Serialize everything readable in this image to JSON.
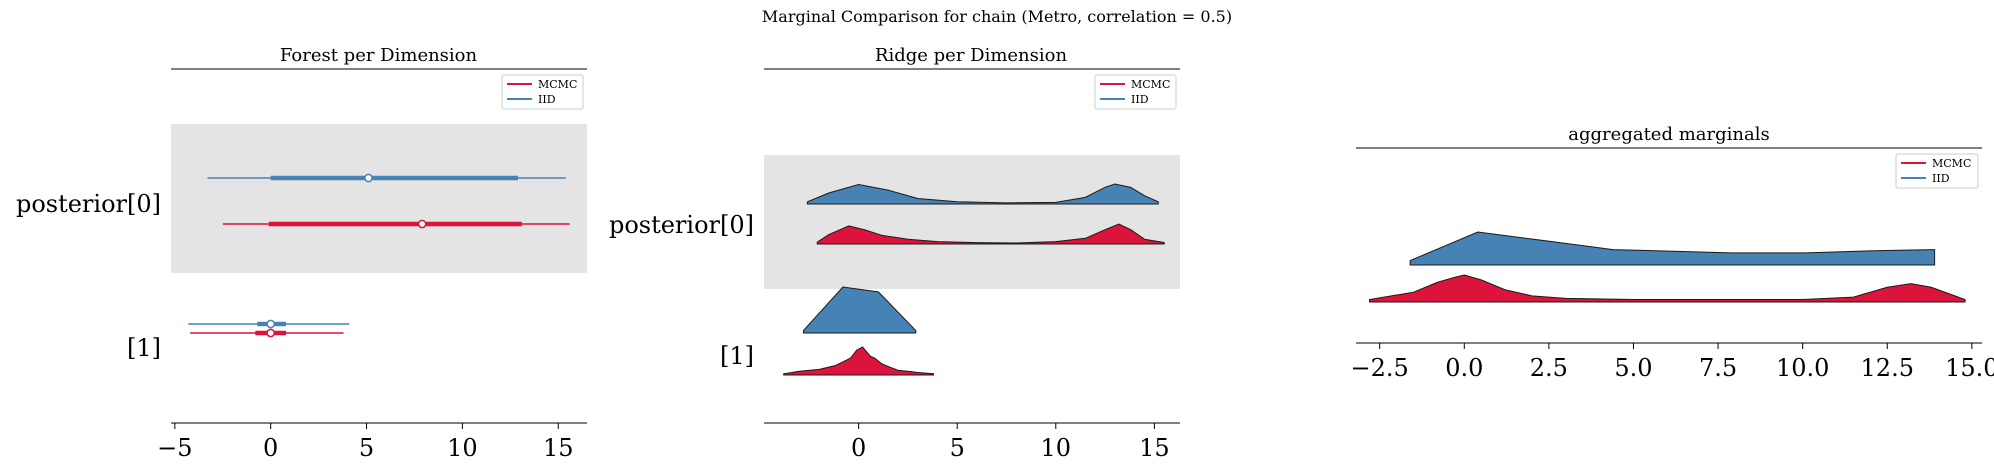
{
  "figure": {
    "suptitle": "Marginal Comparison for chain (Metro, correlation = 0.5)"
  },
  "colors": {
    "mcmc": "#dc143c",
    "iid": "#4682b4",
    "band": "#e4e4e4",
    "axis": "#000000"
  },
  "chart_data": [
    {
      "type": "forest",
      "title": "Forest per Dimension",
      "xlim": [
        -5.2,
        16.5
      ],
      "xticks": [
        -5,
        0,
        5,
        10,
        15
      ],
      "xtick_labels": [
        "−5",
        "0",
        "5",
        "10",
        "15"
      ],
      "ylabels": [
        "posterior[0]",
        "[1]"
      ],
      "legend": {
        "placement": "top-right",
        "entries": [
          "MCMC",
          "IID"
        ]
      },
      "series": [
        {
          "name": "IID",
          "dimension": "posterior[0]",
          "hdi94": [
            -3.3,
            15.4
          ],
          "iqr": [
            0.0,
            12.9
          ],
          "median": 5.1
        },
        {
          "name": "MCMC",
          "dimension": "posterior[0]",
          "hdi94": [
            -2.5,
            15.6
          ],
          "iqr": [
            -0.1,
            13.1
          ],
          "median": 7.9
        },
        {
          "name": "IID",
          "dimension": "[1]",
          "hdi94": [
            -4.3,
            4.1
          ],
          "iqr": [
            -0.7,
            0.8
          ],
          "median": 0.0
        },
        {
          "name": "MCMC",
          "dimension": "[1]",
          "hdi94": [
            -4.2,
            3.8
          ],
          "iqr": [
            -0.8,
            0.8
          ],
          "median": 0.0
        }
      ]
    },
    {
      "type": "ridge",
      "title": "Ridge per Dimension",
      "xlim": [
        -4.8,
        16.3
      ],
      "xticks": [
        0,
        5,
        10,
        15
      ],
      "xtick_labels": [
        "0",
        "5",
        "10",
        "15"
      ],
      "ylabels": [
        "posterior[0]",
        "[1]"
      ],
      "legend": {
        "placement": "top-right",
        "entries": [
          "MCMC",
          "IID"
        ]
      },
      "series": [
        {
          "name": "IID",
          "dimension": "posterior[0]",
          "x": [
            -2.6,
            -1.5,
            0.0,
            1.5,
            3.0,
            5.0,
            7.5,
            10.0,
            11.5,
            12.5,
            13.0,
            13.8,
            14.5,
            15.2
          ],
          "density": [
            0.04,
            0.2,
            0.35,
            0.25,
            0.1,
            0.04,
            0.02,
            0.03,
            0.12,
            0.3,
            0.36,
            0.3,
            0.15,
            0.04
          ]
        },
        {
          "name": "MCMC",
          "dimension": "posterior[0]",
          "x": [
            -2.1,
            -1.5,
            -0.5,
            0.3,
            1.2,
            2.5,
            4.0,
            6.0,
            8.0,
            10.0,
            11.5,
            12.5,
            13.2,
            13.8,
            14.5,
            15.5
          ],
          "density": [
            0.04,
            0.2,
            0.38,
            0.3,
            0.18,
            0.1,
            0.05,
            0.03,
            0.02,
            0.05,
            0.12,
            0.3,
            0.42,
            0.3,
            0.1,
            0.03
          ]
        },
        {
          "name": "IID",
          "dimension": "[1]",
          "x": [
            -2.8,
            -0.8,
            1.0,
            2.9
          ],
          "density": [
            0.05,
            0.95,
            0.85,
            0.05
          ]
        },
        {
          "name": "MCMC",
          "dimension": "[1]",
          "x": [
            -3.8,
            -3.0,
            -2.0,
            -1.2,
            -0.8,
            -0.4,
            -0.1,
            0.2,
            0.4,
            0.6,
            0.8,
            1.2,
            1.6,
            2.0,
            2.5,
            3.0,
            3.8
          ],
          "density": [
            0.04,
            0.12,
            0.18,
            0.3,
            0.42,
            0.55,
            0.8,
            0.9,
            0.75,
            0.6,
            0.55,
            0.35,
            0.25,
            0.15,
            0.12,
            0.08,
            0.04
          ]
        }
      ]
    },
    {
      "type": "area",
      "title": "aggregated marginals",
      "xlim": [
        -3.2,
        15.3
      ],
      "xticks": [
        -2.5,
        0.0,
        2.5,
        5.0,
        7.5,
        10.0,
        12.5,
        15.0
      ],
      "xtick_labels": [
        "−2.5",
        "0.0",
        "2.5",
        "5.0",
        "7.5",
        "10.0",
        "12.5",
        "15.0"
      ],
      "legend": {
        "placement": "top-right",
        "entries": [
          "MCMC",
          "IID"
        ]
      },
      "series": [
        {
          "name": "IID",
          "x": [
            -1.6,
            0.4,
            2.4,
            4.4,
            7.9,
            10.1,
            12.1,
            13.9
          ],
          "density": [
            0.04,
            0.3,
            0.22,
            0.14,
            0.11,
            0.11,
            0.13,
            0.14
          ]
        },
        {
          "name": "MCMC",
          "x": [
            -2.8,
            -1.5,
            -0.8,
            -0.3,
            0.0,
            0.5,
            1.2,
            2.0,
            3.0,
            5.0,
            8.0,
            10.0,
            11.5,
            12.5,
            13.2,
            13.8,
            14.5,
            14.8
          ],
          "density": [
            0.02,
            0.08,
            0.16,
            0.2,
            0.22,
            0.18,
            0.1,
            0.05,
            0.03,
            0.02,
            0.02,
            0.02,
            0.04,
            0.12,
            0.15,
            0.12,
            0.05,
            0.02
          ]
        }
      ]
    }
  ]
}
